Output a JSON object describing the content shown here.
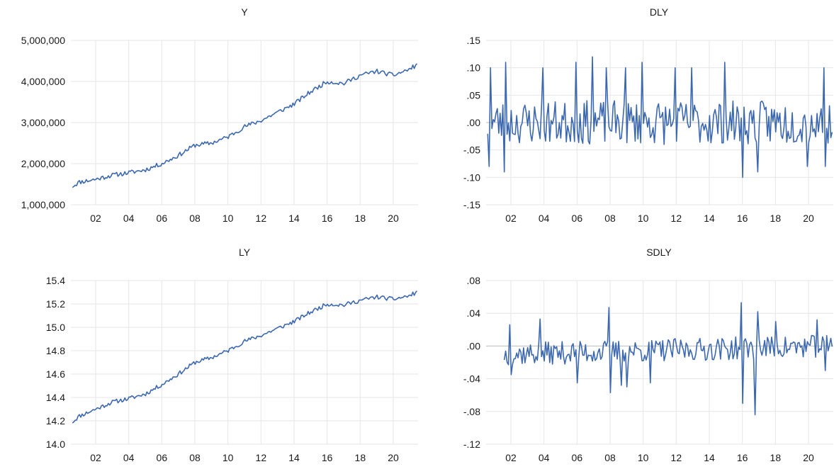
{
  "chart_data": [
    {
      "type": "line",
      "title": "Y",
      "xlabel": "",
      "ylabel": "",
      "x_range": [
        2000.5,
        2021.5
      ],
      "xticks": [
        "02",
        "04",
        "06",
        "08",
        "10",
        "12",
        "14",
        "16",
        "18",
        "20"
      ],
      "xtick_values": [
        2002,
        2004,
        2006,
        2008,
        2010,
        2012,
        2014,
        2016,
        2018,
        2020
      ],
      "ylim": [
        1000000,
        5000000
      ],
      "yticks": [
        "1,000,000",
        "2,000,000",
        "3,000,000",
        "4,000,000",
        "5,000,000"
      ],
      "ytick_values": [
        1000000,
        2000000,
        3000000,
        4000000,
        5000000
      ],
      "grid": true,
      "series": [
        {
          "color": "#3c68b0",
          "points": [
            [
              2000.6,
              1450000
            ],
            [
              2001.0,
              1550000
            ],
            [
              2002.0,
              1620000
            ],
            [
              2003.0,
              1720000
            ],
            [
              2004.0,
              1780000
            ],
            [
              2005.0,
              1850000
            ],
            [
              2006.0,
              2000000
            ],
            [
              2007.0,
              2200000
            ],
            [
              2008.0,
              2450000
            ],
            [
              2009.0,
              2500000
            ],
            [
              2010.0,
              2650000
            ],
            [
              2011.0,
              2900000
            ],
            [
              2012.0,
              3050000
            ],
            [
              2013.0,
              3250000
            ],
            [
              2014.0,
              3450000
            ],
            [
              2015.0,
              3750000
            ],
            [
              2016.0,
              4000000
            ],
            [
              2017.0,
              3950000
            ],
            [
              2018.0,
              4150000
            ],
            [
              2019.0,
              4250000
            ],
            [
              2020.0,
              4150000
            ],
            [
              2021.0,
              4300000
            ],
            [
              2021.4,
              4400000
            ]
          ],
          "amplitude": 55000,
          "seed": 11
        }
      ]
    },
    {
      "type": "line",
      "title": "DLY",
      "xlabel": "",
      "ylabel": "",
      "x_range": [
        2000.5,
        2021.5
      ],
      "xticks": [
        "02",
        "04",
        "06",
        "08",
        "10",
        "12",
        "14",
        "16",
        "18",
        "20"
      ],
      "xtick_values": [
        2002,
        2004,
        2006,
        2008,
        2010,
        2012,
        2014,
        2016,
        2018,
        2020
      ],
      "ylim": [
        -0.15,
        0.15
      ],
      "yticks": [
        "-.15",
        "-.10",
        "-.05",
        ".00",
        ".05",
        ".10",
        ".15"
      ],
      "ytick_values": [
        -0.15,
        -0.1,
        -0.05,
        0.0,
        0.05,
        0.1,
        0.15
      ],
      "grid": true,
      "series": [
        {
          "color": "#3c68b0",
          "points": [
            [
              2000.6,
              0.0
            ],
            [
              2021.4,
              0.0
            ]
          ],
          "amplitude": 0.04,
          "spikes": [
            [
              2000.7,
              -0.08
            ],
            [
              2000.8,
              0.1
            ],
            [
              2001.6,
              -0.09
            ],
            [
              2001.7,
              0.11
            ],
            [
              2003.9,
              0.1
            ],
            [
              2005.9,
              0.11
            ],
            [
              2006.9,
              0.12
            ],
            [
              2007.8,
              0.1
            ],
            [
              2008.9,
              0.1
            ],
            [
              2009.9,
              0.11
            ],
            [
              2011.9,
              0.1
            ],
            [
              2012.9,
              0.1
            ],
            [
              2014.9,
              0.11
            ],
            [
              2016.0,
              -0.1
            ],
            [
              2016.9,
              -0.09
            ],
            [
              2019.9,
              -0.08
            ],
            [
              2020.9,
              0.1
            ],
            [
              2021.0,
              -0.08
            ]
          ],
          "seed": 23
        }
      ]
    },
    {
      "type": "line",
      "title": "LY",
      "xlabel": "",
      "ylabel": "",
      "x_range": [
        2000.5,
        2021.5
      ],
      "xticks": [
        "02",
        "04",
        "06",
        "08",
        "10",
        "12",
        "14",
        "16",
        "18",
        "20"
      ],
      "xtick_values": [
        2002,
        2004,
        2006,
        2008,
        2010,
        2012,
        2014,
        2016,
        2018,
        2020
      ],
      "ylim": [
        14.0,
        15.4
      ],
      "yticks": [
        "14.0",
        "14.2",
        "14.4",
        "14.6",
        "14.8",
        "15.0",
        "15.2",
        "15.4"
      ],
      "ytick_values": [
        14.0,
        14.2,
        14.4,
        14.6,
        14.8,
        15.0,
        15.2,
        15.4
      ],
      "grid": true,
      "series": [
        {
          "color": "#3c68b0",
          "points": [
            [
              2000.6,
              14.19
            ],
            [
              2001.0,
              14.24
            ],
            [
              2002.0,
              14.3
            ],
            [
              2003.0,
              14.36
            ],
            [
              2004.0,
              14.39
            ],
            [
              2005.0,
              14.43
            ],
            [
              2006.0,
              14.51
            ],
            [
              2007.0,
              14.6
            ],
            [
              2008.0,
              14.7
            ],
            [
              2009.0,
              14.74
            ],
            [
              2010.0,
              14.8
            ],
            [
              2011.0,
              14.88
            ],
            [
              2012.0,
              14.93
            ],
            [
              2013.0,
              14.99
            ],
            [
              2014.0,
              15.05
            ],
            [
              2015.0,
              15.13
            ],
            [
              2016.0,
              15.2
            ],
            [
              2017.0,
              15.19
            ],
            [
              2018.0,
              15.23
            ],
            [
              2019.0,
              15.26
            ],
            [
              2020.0,
              15.24
            ],
            [
              2021.0,
              15.27
            ],
            [
              2021.4,
              15.3
            ]
          ],
          "amplitude": 0.018,
          "seed": 11
        }
      ]
    },
    {
      "type": "line",
      "title": "SDLY",
      "xlabel": "",
      "ylabel": "",
      "x_range": [
        2000.5,
        2021.5
      ],
      "xticks": [
        "02",
        "04",
        "06",
        "08",
        "10",
        "12",
        "14",
        "16",
        "18",
        "20"
      ],
      "xtick_values": [
        2002,
        2004,
        2006,
        2008,
        2010,
        2012,
        2014,
        2016,
        2018,
        2020
      ],
      "ylim": [
        -0.12,
        0.08
      ],
      "yticks": [
        "-.12",
        "-.08",
        "-.04",
        ".00",
        ".04",
        ".08"
      ],
      "ytick_values": [
        -0.12,
        -0.08,
        -0.04,
        0.0,
        0.04,
        0.08
      ],
      "grid": true,
      "series": [
        {
          "color": "#3c68b0",
          "points": [
            [
              2001.6,
              -0.01
            ],
            [
              2021.4,
              0.0
            ]
          ],
          "amplitude": 0.014,
          "spikes": [
            [
              2001.9,
              0.026
            ],
            [
              2002.0,
              -0.035
            ],
            [
              2003.8,
              0.033
            ],
            [
              2006.0,
              -0.045
            ],
            [
              2007.9,
              0.047
            ],
            [
              2008.0,
              -0.057
            ],
            [
              2008.7,
              -0.048
            ],
            [
              2009.0,
              -0.05
            ],
            [
              2010.4,
              -0.045
            ],
            [
              2015.9,
              0.053
            ],
            [
              2016.0,
              -0.07
            ],
            [
              2016.8,
              -0.084
            ],
            [
              2016.9,
              0.042
            ],
            [
              2018.0,
              0.03
            ],
            [
              2020.5,
              0.032
            ],
            [
              2021.0,
              -0.03
            ]
          ],
          "seed": 37
        }
      ]
    }
  ]
}
